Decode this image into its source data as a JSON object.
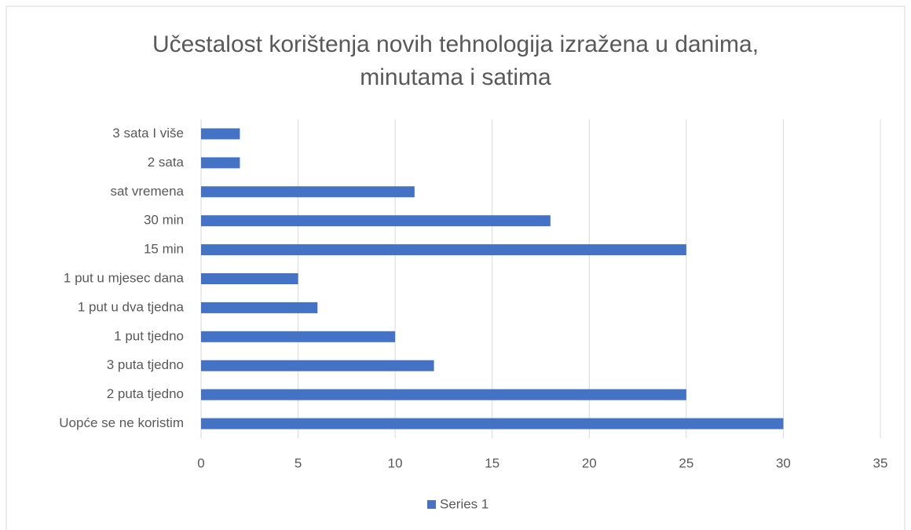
{
  "chart_data": {
    "type": "bar",
    "orientation": "horizontal",
    "title": "Učestalost korištenja novih tehnologija izražena u danima, minutama i satima",
    "categories": [
      "3 sata I više",
      "2 sata",
      "sat vremena",
      "30 min",
      "15 min",
      "1 put u mjesec dana",
      "1 put u dva tjedna",
      "1 put tjedno",
      "3 puta tjedno",
      "2 puta tjedno",
      "Uopće se ne koristim"
    ],
    "series": [
      {
        "name": "Series 1",
        "color": "#4472c4",
        "values": [
          2,
          2,
          11,
          18,
          25,
          5,
          6,
          10,
          12,
          25,
          30
        ]
      }
    ],
    "xlim": [
      0,
      35
    ],
    "xticks": [
      0,
      5,
      10,
      15,
      20,
      25,
      30,
      35
    ],
    "grid": true,
    "legend": "bottom"
  }
}
